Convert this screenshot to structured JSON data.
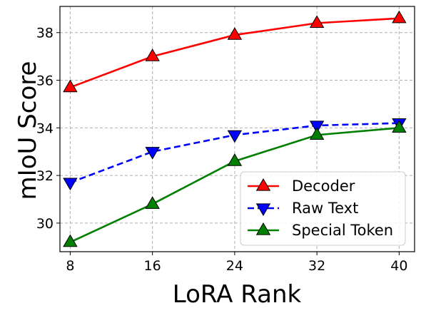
{
  "chart_data": {
    "type": "line",
    "xlabel": "LoRA Rank",
    "ylabel": "mIoU Score",
    "x": [
      8,
      16,
      24,
      32,
      40
    ],
    "xlim": [
      7,
      41.5
    ],
    "ylim": [
      28.8,
      39.1
    ],
    "xticks": [
      "8",
      "16",
      "24",
      "32",
      "40"
    ],
    "yticks": [
      "30",
      "32",
      "34",
      "36",
      "38"
    ],
    "grid": true,
    "legend_position": "lower-right",
    "series": [
      {
        "name": "Decoder",
        "values": [
          35.7,
          37.0,
          37.9,
          38.4,
          38.6
        ],
        "color": "#ff0000",
        "dash": "solid",
        "marker": "triangle-up"
      },
      {
        "name": "Raw Text",
        "values": [
          31.7,
          33.0,
          33.7,
          34.1,
          34.2
        ],
        "color": "#0000ff",
        "dash": "dashed",
        "marker": "triangle-down"
      },
      {
        "name": "Special Token",
        "values": [
          29.2,
          30.8,
          32.6,
          33.7,
          34.0
        ],
        "color": "#008000",
        "dash": "solid",
        "marker": "triangle-up"
      }
    ]
  }
}
